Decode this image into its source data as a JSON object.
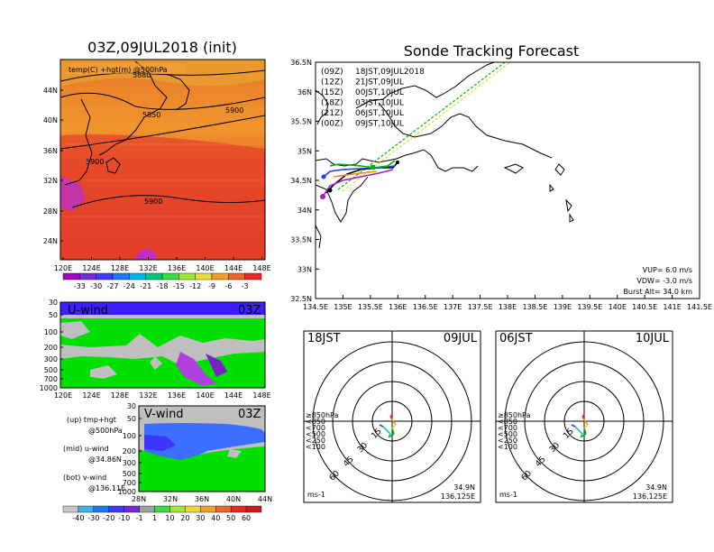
{
  "map_panel": {
    "title": "03Z,09JUL2018 (init)",
    "subtitle": "temp(C) +hgt(m) @500hPa",
    "lat_labels": [
      "44N",
      "40N",
      "36N",
      "32N",
      "28N",
      "24N"
    ],
    "lon_labels": [
      "120E",
      "124E",
      "128E",
      "132E",
      "136E",
      "140E",
      "144E",
      "148E"
    ],
    "contour_labels": [
      "5880",
      "5850",
      "5900",
      "5900",
      "5900"
    ],
    "colorbar_labels": [
      "-33",
      "-30",
      "-27",
      "-24",
      "-21",
      "-18",
      "-15",
      "-12",
      "-9",
      "-6",
      "-3"
    ]
  },
  "uwind_panel": {
    "title": "U-wind",
    "time": "03Z",
    "pressure_labels": [
      "30",
      "50",
      "100",
      "200",
      "300",
      "500",
      "700",
      "1000"
    ],
    "lon_labels": [
      "120E",
      "124E",
      "128E",
      "132E",
      "136E",
      "140E",
      "144E",
      "148E"
    ]
  },
  "vwind_panel": {
    "title": "V-wind",
    "time": "03Z",
    "pressure_labels": [
      "30",
      "50",
      "100",
      "200",
      "300",
      "500",
      "700",
      "1000"
    ],
    "lat_labels": [
      "28N",
      "32N",
      "36N",
      "40N",
      "44N"
    ]
  },
  "legend_text": {
    "l1": "(up) tmp+hgt",
    "l2": "@500hPa",
    "l3": "(mid) u-wind",
    "l4": "@34.86N",
    "l5": "(bot) v-wind",
    "l6": "@136.11E"
  },
  "wind_colorbar_labels": [
    "-40",
    "-30",
    "-20",
    "-10",
    "-1",
    "1",
    "10",
    "20",
    "30",
    "40",
    "50",
    "60"
  ],
  "track_panel": {
    "title": "Sonde Tracking Forecast",
    "lat_labels": [
      "36.5N",
      "36N",
      "35.5N",
      "35N",
      "34.5N",
      "34N",
      "33.5N",
      "33N",
      "32.5N"
    ],
    "lon_labels": [
      "134.5E",
      "135E",
      "135.5E",
      "136E",
      "136.5E",
      "137E",
      "137.5E",
      "138E",
      "138.5E",
      "139E",
      "139.5E",
      "140E",
      "140.5E",
      "141E",
      "141.5E"
    ],
    "legend": [
      {
        "run": "(09Z)",
        "time": "18JST,09JUL2018",
        "color": "#000000"
      },
      {
        "run": "(12Z)",
        "time": "21JST,09JUL",
        "color": "#a020c0"
      },
      {
        "run": "(15Z)",
        "time": "00JST,10JUL",
        "color": "#1e3cff"
      },
      {
        "run": "(18Z)",
        "time": "03JST,10JUL",
        "color": "#00b400"
      },
      {
        "run": "(21Z)",
        "time": "06JST,10JUL",
        "color": "#e6dc32"
      },
      {
        "run": "(00Z)",
        "time": "09JST,10JUL",
        "color": "#f08c28"
      }
    ],
    "vup": "VUP=  6.0 m/s",
    "vdw": "VDW= -3.0 m/s",
    "burst": "Burst Alt= 34.0 km"
  },
  "hodo_left": {
    "time": "18JST",
    "date": "09JUL",
    "lat": "34.9N",
    "lon": "136.125E",
    "unit": "ms-1",
    "ring_labels": [
      "15",
      "30",
      "45",
      "60"
    ],
    "levels": [
      {
        "label": "≥850hPa",
        "color": "#ff2020"
      },
      {
        "label": "<850",
        "color": "#f08c28"
      },
      {
        "label": "<700",
        "color": "#e6dc32"
      },
      {
        "label": "<500",
        "color": "#00b400"
      },
      {
        "label": "<250",
        "color": "#20c0c0"
      },
      {
        "label": "<100",
        "color": "#1e3cff"
      }
    ]
  },
  "hodo_right": {
    "time": "06JST",
    "date": "10JUL",
    "lat": "34.9N",
    "lon": "136.125E",
    "unit": "ms-1",
    "ring_labels": [
      "15",
      "30",
      "45",
      "60"
    ],
    "levels": [
      {
        "label": "≥850hPa",
        "color": "#ff2020"
      },
      {
        "label": "<850",
        "color": "#f08c28"
      },
      {
        "label": "<700",
        "color": "#e6dc32"
      },
      {
        "label": "<500",
        "color": "#00b400"
      },
      {
        "label": "<250",
        "color": "#20c0c0"
      },
      {
        "label": "<100",
        "color": "#1e3cff"
      }
    ]
  }
}
